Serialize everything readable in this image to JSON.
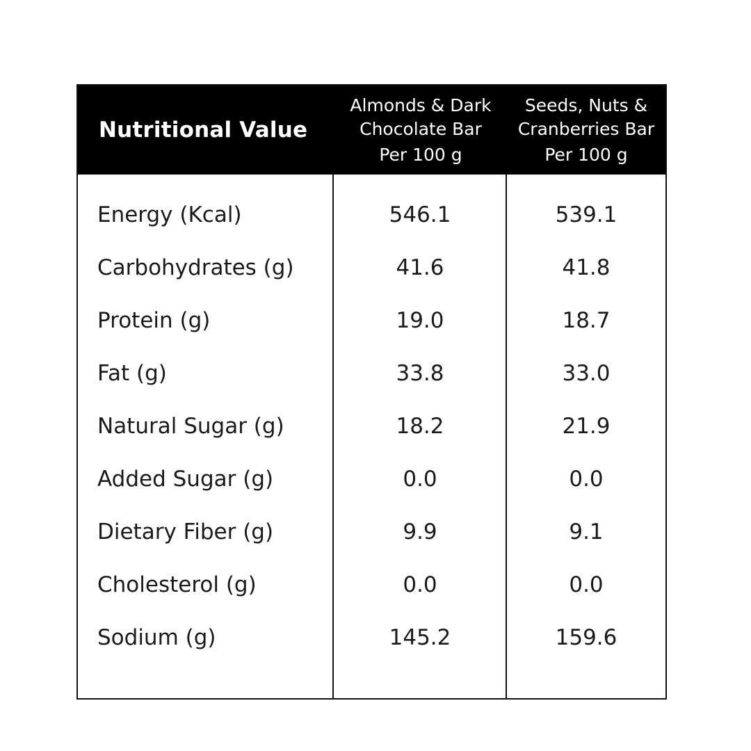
{
  "header": {
    "title": "Nutritional Value",
    "columns": [
      {
        "line1": "Almonds & Dark",
        "line2": "Chocolate Bar",
        "line3": "Per 100 g"
      },
      {
        "line1": "Seeds, Nuts &",
        "line2": "Cranberries Bar",
        "line3": "Per 100 g"
      }
    ]
  },
  "rows": [
    {
      "label": "Energy (Kcal)",
      "v1": "546.1",
      "v2": "539.1"
    },
    {
      "label": "Carbohydrates (g)",
      "v1": "41.6",
      "v2": "41.8"
    },
    {
      "label": "Protein (g)",
      "v1": "19.0",
      "v2": "18.7"
    },
    {
      "label": "Fat (g)",
      "v1": "33.8",
      "v2": "33.0"
    },
    {
      "label": "Natural Sugar (g)",
      "v1": "18.2",
      "v2": "21.9"
    },
    {
      "label": "Added Sugar (g)",
      "v1": "0.0",
      "v2": "0.0"
    },
    {
      "label": "Dietary Fiber (g)",
      "v1": "9.9",
      "v2": "9.1"
    },
    {
      "label": "Cholesterol (g)",
      "v1": "0.0",
      "v2": "0.0"
    },
    {
      "label": "Sodium (g)",
      "v1": "145.2",
      "v2": "159.6"
    }
  ]
}
